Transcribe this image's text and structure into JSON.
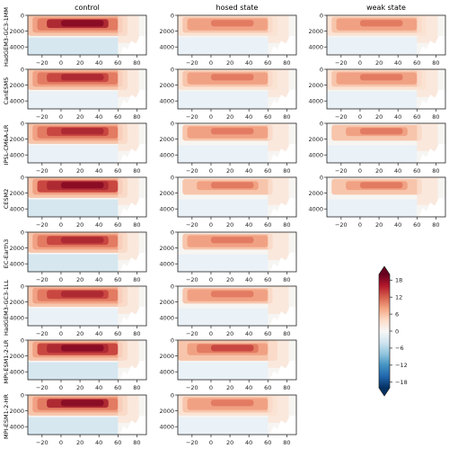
{
  "chart_data": {
    "type": "heatmap",
    "columns": [
      "control",
      "hosed state",
      "weak state"
    ],
    "rows": [
      {
        "name": "HadGEM3-GC3-1MM",
        "panels": [
          {
            "col": 0,
            "strength": 1.0
          },
          {
            "col": 1,
            "strength": 0.55
          },
          {
            "col": 2,
            "strength": 0.55
          }
        ]
      },
      {
        "name": "CanESM5",
        "panels": [
          {
            "col": 0,
            "strength": 0.8
          },
          {
            "col": 1,
            "strength": 0.55
          },
          {
            "col": 2,
            "strength": 0.55
          }
        ]
      },
      {
        "name": "IPSL-CM6A-LR",
        "panels": [
          {
            "col": 0,
            "strength": 0.8
          },
          {
            "col": 1,
            "strength": 0.5
          },
          {
            "col": 2,
            "strength": 0.45
          }
        ]
      },
      {
        "name": "CESM2",
        "panels": [
          {
            "col": 0,
            "strength": 1.1
          },
          {
            "col": 1,
            "strength": 0.45
          },
          {
            "col": 2,
            "strength": 0.45
          }
        ]
      },
      {
        "name": "EC-Earth3",
        "panels": [
          {
            "col": 0,
            "strength": 0.95
          },
          {
            "col": 1,
            "strength": 0.5
          }
        ]
      },
      {
        "name": "HadGEM3-GC3-1LL",
        "panels": [
          {
            "col": 0,
            "strength": 0.9
          },
          {
            "col": 1,
            "strength": 0.5
          }
        ]
      },
      {
        "name": "MPI-ESM1-2-LR",
        "panels": [
          {
            "col": 0,
            "strength": 1.1
          },
          {
            "col": 1,
            "strength": 0.65
          }
        ]
      },
      {
        "name": "MPI-ESM1-2-HR",
        "panels": [
          {
            "col": 0,
            "strength": 1.0
          },
          {
            "col": 1,
            "strength": 0.55
          }
        ]
      }
    ],
    "x_ticks": [
      -20,
      0,
      20,
      40,
      60,
      80
    ],
    "xlim": [
      -35,
      90
    ],
    "y_ticks": [
      0,
      2000,
      4000
    ],
    "ylim": [
      5000,
      0
    ],
    "colorbar": {
      "ticks": [
        18,
        12,
        6,
        0,
        -6,
        -12,
        -18
      ],
      "range": [
        -20,
        20
      ],
      "extend": "both",
      "colormap": "RdBu_r"
    }
  }
}
